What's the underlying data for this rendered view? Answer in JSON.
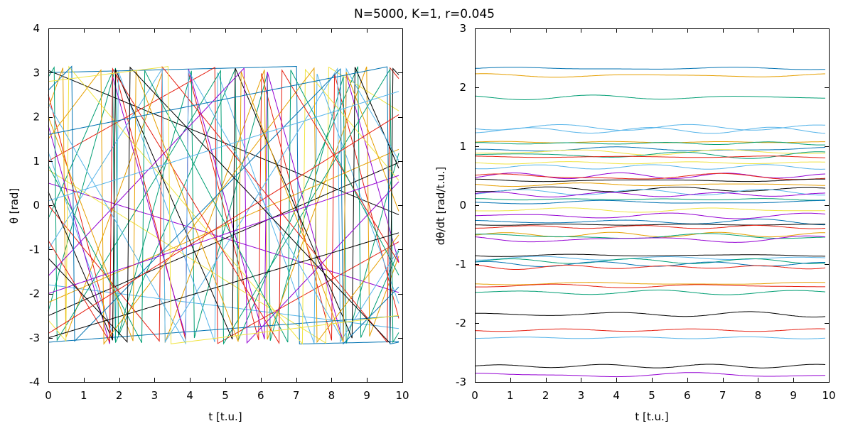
{
  "figure": {
    "title": "N=5000, K=1, r=0.045"
  },
  "palette": [
    "#9400d3",
    "#009e73",
    "#56b4e9",
    "#e69f00",
    "#f0e442",
    "#0072b2",
    "#e51e10",
    "#000000"
  ],
  "chart_data": [
    {
      "type": "line",
      "panel": "left",
      "xlabel": "t [t.u.]",
      "ylabel": "θ [rad]",
      "xlim": [
        0,
        10
      ],
      "ylim": [
        -4,
        4
      ],
      "xticks": [
        0,
        1,
        2,
        3,
        4,
        5,
        6,
        7,
        8,
        9,
        10
      ],
      "yticks": [
        -4,
        -3,
        -2,
        -1,
        0,
        1,
        2,
        3,
        4
      ],
      "grid": false,
      "legend": "none",
      "description": "phases of sampled oscillators, wrapped to [-π, π]",
      "x_range": [
        0,
        9.9
      ],
      "wrap": [
        -3.14159,
        3.14159
      ],
      "series": [
        {
          "color": "#9400d3",
          "y0": 0.5,
          "omega": -0.25
        },
        {
          "color": "#e51e10",
          "y0": 2.5,
          "omega": -3.05
        },
        {
          "color": "#009e73",
          "y0": -2.4,
          "omega": 2.9
        },
        {
          "color": "#56b4e9",
          "y0": -1.8,
          "omega": -0.1
        },
        {
          "color": "#e69f00",
          "y0": -2.2,
          "omega": 0.35
        },
        {
          "color": "#000000",
          "y0": 3.05,
          "omega": -0.33
        },
        {
          "color": "#0072b2",
          "y0": 3.0,
          "omega": 0.02
        },
        {
          "color": "#e51e10",
          "y0": 1.0,
          "omega": 0.45
        },
        {
          "color": "#f0e442",
          "y0": 0.8,
          "omega": -0.5
        },
        {
          "color": "#56b4e9",
          "y0": 1.2,
          "omega": -2.25
        },
        {
          "color": "#e69f00",
          "y0": 2.2,
          "omega": 2.2
        },
        {
          "color": "#009e73",
          "y0": -0.3,
          "omega": 1.83
        },
        {
          "color": "#000000",
          "y0": -2.5,
          "omega": 0.35
        },
        {
          "color": "#9400d3",
          "y0": 1.8,
          "omega": -2.85
        },
        {
          "color": "#0072b2",
          "y0": -3.1,
          "omega": 0.06
        },
        {
          "color": "#e51e10",
          "y0": 0.0,
          "omega": -0.98
        },
        {
          "color": "#009e73",
          "y0": 2.9,
          "omega": 1.32
        },
        {
          "color": "#56b4e9",
          "y0": -1.0,
          "omega": 1.27
        },
        {
          "color": "#f0e442",
          "y0": -2.6,
          "omega": -0.95
        },
        {
          "color": "#000000",
          "y0": 0.3,
          "omega": -1.85
        },
        {
          "color": "#e69f00",
          "y0": 1.5,
          "omega": 1.05
        },
        {
          "color": "#9400d3",
          "y0": -1.6,
          "omega": 0.85
        },
        {
          "color": "#0072b2",
          "y0": 2.6,
          "omega": 0.82
        },
        {
          "color": "#e51e10",
          "y0": -0.8,
          "omega": -1.32
        },
        {
          "color": "#000000",
          "y0": -3.0,
          "omega": 0.24
        },
        {
          "color": "#56b4e9",
          "y0": 2.3,
          "omega": -1.4
        },
        {
          "color": "#009e73",
          "y0": 0.9,
          "omega": -1.52
        },
        {
          "color": "#9400d3",
          "y0": -2.0,
          "omega": 0.27
        },
        {
          "color": "#e69f00",
          "y0": 2.0,
          "omega": -2.12
        },
        {
          "color": "#000000",
          "y0": -1.2,
          "omega": -0.85
        },
        {
          "color": "#0072b2",
          "y0": 1.6,
          "omega": 0.16
        },
        {
          "color": "#e51e10",
          "y0": -2.9,
          "omega": 0.5
        },
        {
          "color": "#56b4e9",
          "y0": 0.1,
          "omega": 0.25
        },
        {
          "color": "#f0e442",
          "y0": 2.8,
          "omega": 0.1
        }
      ]
    },
    {
      "type": "line",
      "panel": "right",
      "xlabel": "t [t.u.]",
      "ylabel": "dθ/dt [rad/t.u.]",
      "xlim": [
        0,
        10
      ],
      "ylim": [
        -3,
        3
      ],
      "xticks": [
        0,
        1,
        2,
        3,
        4,
        5,
        6,
        7,
        8,
        9,
        10
      ],
      "yticks": [
        -3,
        -2,
        -1,
        0,
        1,
        2,
        3
      ],
      "grid": false,
      "legend": "none",
      "description": "instantaneous frequencies of sampled oscillators",
      "x_range": [
        0,
        9.9
      ],
      "series": [
        {
          "color": "#0072b2",
          "value": 2.32
        },
        {
          "color": "#e69f00",
          "value": 2.2
        },
        {
          "color": "#009e73",
          "value": 1.83
        },
        {
          "color": "#56b4e9",
          "value": 1.32
        },
        {
          "color": "#56b4e9",
          "value": 1.27
        },
        {
          "color": "#e69f00",
          "value": 1.07
        },
        {
          "color": "#009e73",
          "value": 1.05
        },
        {
          "color": "#0072b2",
          "value": 0.95
        },
        {
          "color": "#f0e442",
          "value": 0.9
        },
        {
          "color": "#009e73",
          "value": 0.85
        },
        {
          "color": "#e51e10",
          "value": 0.82
        },
        {
          "color": "#f0e442",
          "value": 0.72
        },
        {
          "color": "#56b4e9",
          "value": 0.65
        },
        {
          "color": "#9400d3",
          "value": 0.5
        },
        {
          "color": "#e51e10",
          "value": 0.48
        },
        {
          "color": "#000000",
          "value": 0.42
        },
        {
          "color": "#e69f00",
          "value": 0.35
        },
        {
          "color": "#000000",
          "value": 0.27
        },
        {
          "color": "#56b4e9",
          "value": 0.22
        },
        {
          "color": "#9400d3",
          "value": 0.18
        },
        {
          "color": "#009e73",
          "value": 0.1
        },
        {
          "color": "#0072b2",
          "value": 0.05
        },
        {
          "color": "#f0e442",
          "value": -0.08
        },
        {
          "color": "#9400d3",
          "value": -0.18
        },
        {
          "color": "#0072b2",
          "value": -0.28
        },
        {
          "color": "#000000",
          "value": -0.33
        },
        {
          "color": "#e51e10",
          "value": -0.37
        },
        {
          "color": "#e69f00",
          "value": -0.5
        },
        {
          "color": "#009e73",
          "value": -0.53
        },
        {
          "color": "#9400d3",
          "value": -0.58
        },
        {
          "color": "#000000",
          "value": -0.85
        },
        {
          "color": "#56b4e9",
          "value": -0.9
        },
        {
          "color": "#009e73",
          "value": -0.95
        },
        {
          "color": "#0072b2",
          "value": -1.0
        },
        {
          "color": "#e51e10",
          "value": -1.05
        },
        {
          "color": "#e69f00",
          "value": -1.33
        },
        {
          "color": "#e51e10",
          "value": -1.37
        },
        {
          "color": "#009e73",
          "value": -1.48
        },
        {
          "color": "#000000",
          "value": -1.85
        },
        {
          "color": "#e51e10",
          "value": -2.12
        },
        {
          "color": "#56b4e9",
          "value": -2.25
        },
        {
          "color": "#000000",
          "value": -2.73
        },
        {
          "color": "#9400d3",
          "value": -2.88
        }
      ]
    }
  ]
}
